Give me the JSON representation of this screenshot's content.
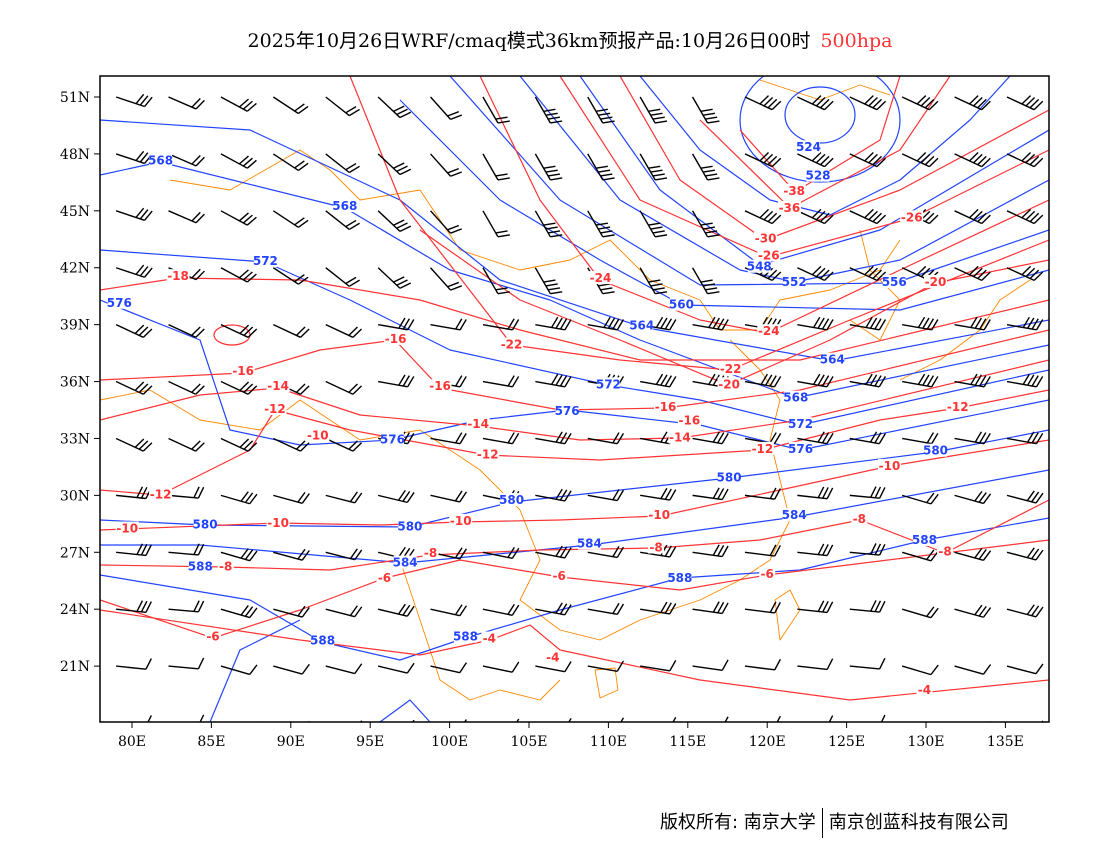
{
  "title": {
    "text": "2025年10月26日WRF/cmaq模式36km预报产品:10月26日00时",
    "level": "500hpa"
  },
  "footer": {
    "copyright": "版权所有: 南京大学",
    "company": "南京创蓝科技有限公司"
  },
  "colors": {
    "height": "#2244ff",
    "temperature": "#ff3333",
    "coast": "#ff8800",
    "wind": "#000000"
  },
  "axes": {
    "lat_ticks": [
      "51N",
      "48N",
      "45N",
      "42N",
      "39N",
      "36N",
      "33N",
      "30N",
      "27N",
      "24N",
      "21N"
    ],
    "lat_values": [
      51,
      48,
      45,
      42,
      39,
      36,
      33,
      30,
      27,
      24,
      21
    ],
    "lon_ticks": [
      "80E",
      "85E",
      "90E",
      "95E",
      "100E",
      "105E",
      "110E",
      "115E",
      "120E",
      "125E",
      "130E",
      "135E"
    ],
    "lon_values": [
      80,
      85,
      90,
      95,
      100,
      105,
      110,
      115,
      120,
      125,
      130,
      135
    ]
  },
  "height_labels": [
    {
      "t": "524",
      "lon": 122.6,
      "lat": 48.3
    },
    {
      "t": "528",
      "lon": 123.2,
      "lat": 46.8
    },
    {
      "t": "548",
      "lon": 119.5,
      "lat": 42.0
    },
    {
      "t": "552",
      "lon": 121.7,
      "lat": 41.2
    },
    {
      "t": "556",
      "lon": 128.0,
      "lat": 41.2
    },
    {
      "t": "560",
      "lon": 114.6,
      "lat": 40.0
    },
    {
      "t": "564",
      "lon": 112.1,
      "lat": 38.9
    },
    {
      "t": "564",
      "lon": 124.1,
      "lat": 37.1
    },
    {
      "t": "568",
      "lon": 81.8,
      "lat": 47.6
    },
    {
      "t": "568",
      "lon": 93.4,
      "lat": 45.2
    },
    {
      "t": "568",
      "lon": 121.8,
      "lat": 35.1
    },
    {
      "t": "572",
      "lon": 88.4,
      "lat": 42.3
    },
    {
      "t": "572",
      "lon": 110.0,
      "lat": 35.8
    },
    {
      "t": "572",
      "lon": 122.1,
      "lat": 33.7
    },
    {
      "t": "576",
      "lon": 79.2,
      "lat": 40.1
    },
    {
      "t": "576",
      "lon": 107.4,
      "lat": 34.4
    },
    {
      "t": "576",
      "lon": 96.4,
      "lat": 32.9
    },
    {
      "t": "576",
      "lon": 122.1,
      "lat": 32.4
    },
    {
      "t": "580",
      "lon": 130.6,
      "lat": 32.3
    },
    {
      "t": "580",
      "lon": 117.6,
      "lat": 30.9
    },
    {
      "t": "580",
      "lon": 103.9,
      "lat": 29.7
    },
    {
      "t": "580",
      "lon": 97.5,
      "lat": 28.3
    },
    {
      "t": "580",
      "lon": 84.6,
      "lat": 28.4
    },
    {
      "t": "584",
      "lon": 121.7,
      "lat": 28.9
    },
    {
      "t": "584",
      "lon": 108.8,
      "lat": 27.4
    },
    {
      "t": "584",
      "lon": 97.2,
      "lat": 26.4
    },
    {
      "t": "588",
      "lon": 84.3,
      "lat": 26.2
    },
    {
      "t": "588",
      "lon": 129.9,
      "lat": 27.6
    },
    {
      "t": "588",
      "lon": 114.5,
      "lat": 25.6
    },
    {
      "t": "588",
      "lon": 92.0,
      "lat": 22.3
    },
    {
      "t": "588",
      "lon": 101.0,
      "lat": 22.5
    }
  ],
  "temperature_labels": [
    {
      "t": "-18",
      "lon": 82.9,
      "lat": 41.5
    },
    {
      "t": "-16",
      "lon": 87.0,
      "lat": 36.5
    },
    {
      "t": "-16",
      "lon": 96.6,
      "lat": 38.2
    },
    {
      "t": "-16",
      "lon": 99.4,
      "lat": 35.7
    },
    {
      "t": "-16",
      "lon": 113.6,
      "lat": 34.6
    },
    {
      "t": "-16",
      "lon": 115.1,
      "lat": 33.9
    },
    {
      "t": "-14",
      "lon": 89.2,
      "lat": 35.7
    },
    {
      "t": "-14",
      "lon": 101.8,
      "lat": 33.7
    },
    {
      "t": "-14",
      "lon": 114.5,
      "lat": 33.0
    },
    {
      "t": "-12",
      "lon": 89.0,
      "lat": 34.5
    },
    {
      "t": "-12",
      "lon": 81.8,
      "lat": 30.0
    },
    {
      "t": "-12",
      "lon": 102.4,
      "lat": 32.1
    },
    {
      "t": "-12",
      "lon": 119.7,
      "lat": 32.4
    },
    {
      "t": "-12",
      "lon": 132.0,
      "lat": 34.6
    },
    {
      "t": "-10",
      "lon": 91.7,
      "lat": 33.1
    },
    {
      "t": "-10",
      "lon": 79.7,
      "lat": 28.2
    },
    {
      "t": "-10",
      "lon": 89.2,
      "lat": 28.5
    },
    {
      "t": "-10",
      "lon": 100.7,
      "lat": 28.6
    },
    {
      "t": "-10",
      "lon": 113.2,
      "lat": 28.9
    },
    {
      "t": "-10",
      "lon": 127.7,
      "lat": 31.5
    },
    {
      "t": "-8",
      "lon": 85.9,
      "lat": 26.2
    },
    {
      "t": "-8",
      "lon": 98.8,
      "lat": 26.9
    },
    {
      "t": "-8",
      "lon": 113.0,
      "lat": 27.2
    },
    {
      "t": "-8",
      "lon": 125.8,
      "lat": 28.7
    },
    {
      "t": "-8",
      "lon": 131.2,
      "lat": 27.0
    },
    {
      "t": "-6",
      "lon": 95.9,
      "lat": 25.6
    },
    {
      "t": "-6",
      "lon": 106.9,
      "lat": 25.7
    },
    {
      "t": "-6",
      "lon": 120.0,
      "lat": 25.8
    },
    {
      "t": "-6",
      "lon": 85.1,
      "lat": 22.5
    },
    {
      "t": "-4",
      "lon": 102.5,
      "lat": 22.4
    },
    {
      "t": "-4",
      "lon": 106.5,
      "lat": 21.4
    },
    {
      "t": "-4",
      "lon": 129.9,
      "lat": 19.7
    },
    {
      "t": "-22",
      "lon": 103.9,
      "lat": 37.9
    },
    {
      "t": "-22",
      "lon": 117.7,
      "lat": 36.6
    },
    {
      "t": "-20",
      "lon": 117.6,
      "lat": 35.8
    },
    {
      "t": "-20",
      "lon": 130.6,
      "lat": 41.2
    },
    {
      "t": "-24",
      "lon": 109.5,
      "lat": 41.4
    },
    {
      "t": "-24",
      "lon": 120.1,
      "lat": 38.6
    },
    {
      "t": "-26",
      "lon": 120.1,
      "lat": 42.6
    },
    {
      "t": "-26",
      "lon": 129.1,
      "lat": 44.6
    },
    {
      "t": "-30",
      "lon": 119.9,
      "lat": 43.5
    },
    {
      "t": "-36",
      "lon": 121.4,
      "lat": 45.1
    },
    {
      "t": "-38",
      "lon": 121.7,
      "lat": 46.0
    }
  ]
}
